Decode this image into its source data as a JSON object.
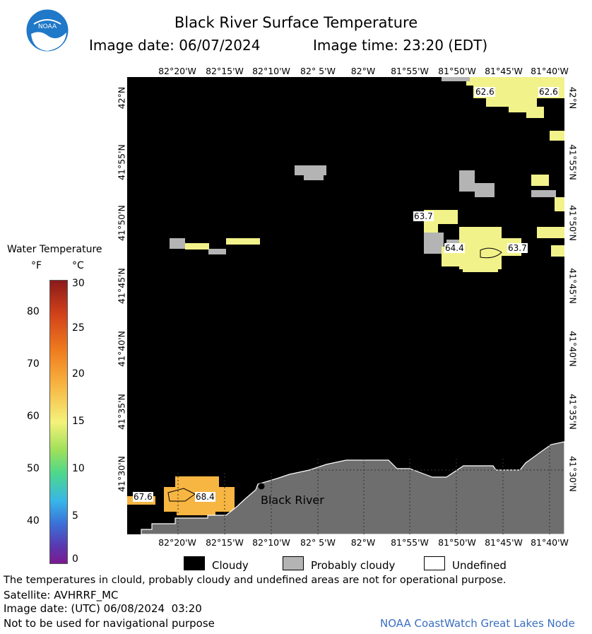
{
  "header": {
    "title": "Black River Surface Temperature",
    "image_date_label": "Image date: 06/07/2024",
    "image_time_label": "Image time: 23:20 (EDT)",
    "logo_text": "NOAA"
  },
  "axes": {
    "lon_labels": [
      "82°20'W",
      "82°15'W",
      "82°10'W",
      "82° 5'W",
      "82°W",
      "81°55'W",
      "81°50'W",
      "81°45'W",
      "81°40'W"
    ],
    "lat_labels": [
      "42°N",
      "41°55'N",
      "41°50'N",
      "41°45'N",
      "41°40'N",
      "41°35'N",
      "41°30'N"
    ]
  },
  "colorbar": {
    "title": "Water Temperature",
    "unit_f": "°F",
    "unit_c": "°C",
    "f_ticks": [
      "80",
      "70",
      "60",
      "50",
      "40"
    ],
    "c_ticks": [
      "30",
      "25",
      "20",
      "15",
      "10",
      "5",
      "0"
    ]
  },
  "map": {
    "place_label": "Black River",
    "temp_labels": [
      "62.6",
      "62.6",
      "63.7",
      "64.4",
      "63.7",
      "67.6",
      "68.4"
    ]
  },
  "legend": {
    "cloudy": "Cloudy",
    "probably_cloudy": "Probably cloudy",
    "undefined": "Undefined"
  },
  "footer": {
    "disclaimer": "The temperatures in clould, probably cloudy and undefined areas are not for operational purpose.",
    "satellite": "Satellite: AVHRRF_MC",
    "utc_date": "Image date: (UTC) 06/08/2024  03:20",
    "navigation": "Not to be used for navigational purpose",
    "credit": "NOAA CoastWatch Great Lakes Node"
  },
  "colors": {
    "cloudy": "#000000",
    "probably_cloudy": "#b4b4b4",
    "land": "#6e6e6e",
    "warm_yellow": "#f2f28a",
    "orange": "#f7b542"
  }
}
